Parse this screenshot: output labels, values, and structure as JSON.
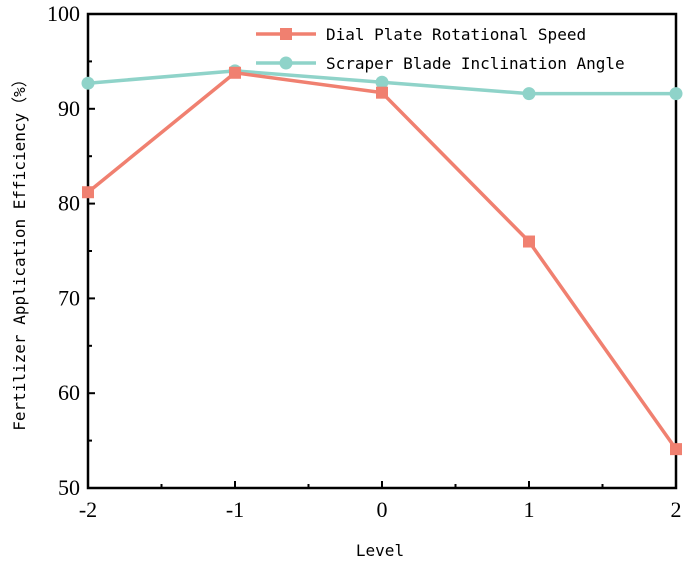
{
  "chart_data": {
    "type": "line",
    "title": "",
    "xlabel": "Level",
    "ylabel": "Fertilizer Application Efficiency（%）",
    "x": [
      -2,
      -1,
      0,
      1,
      2
    ],
    "x_tick_labels": [
      "-2",
      "-1",
      "0",
      "1",
      "2"
    ],
    "xlim": [
      -2,
      2
    ],
    "ylim": [
      50,
      100
    ],
    "y_ticks": [
      50,
      60,
      70,
      80,
      90,
      100
    ],
    "y_tick_labels": [
      "50",
      "60",
      "70",
      "80",
      "90",
      "100"
    ],
    "grid": false,
    "legend_position": "top-right",
    "series": [
      {
        "name": "Dial Plate Rotational Speed",
        "marker": "square",
        "color": "#F08070",
        "values": [
          81.2,
          93.8,
          91.7,
          76.0,
          54.1
        ]
      },
      {
        "name": "Scraper Blade Inclination Angle",
        "marker": "circle",
        "color": "#8FD3C9",
        "values": [
          92.7,
          94.0,
          92.8,
          91.6,
          91.6
        ]
      }
    ]
  }
}
